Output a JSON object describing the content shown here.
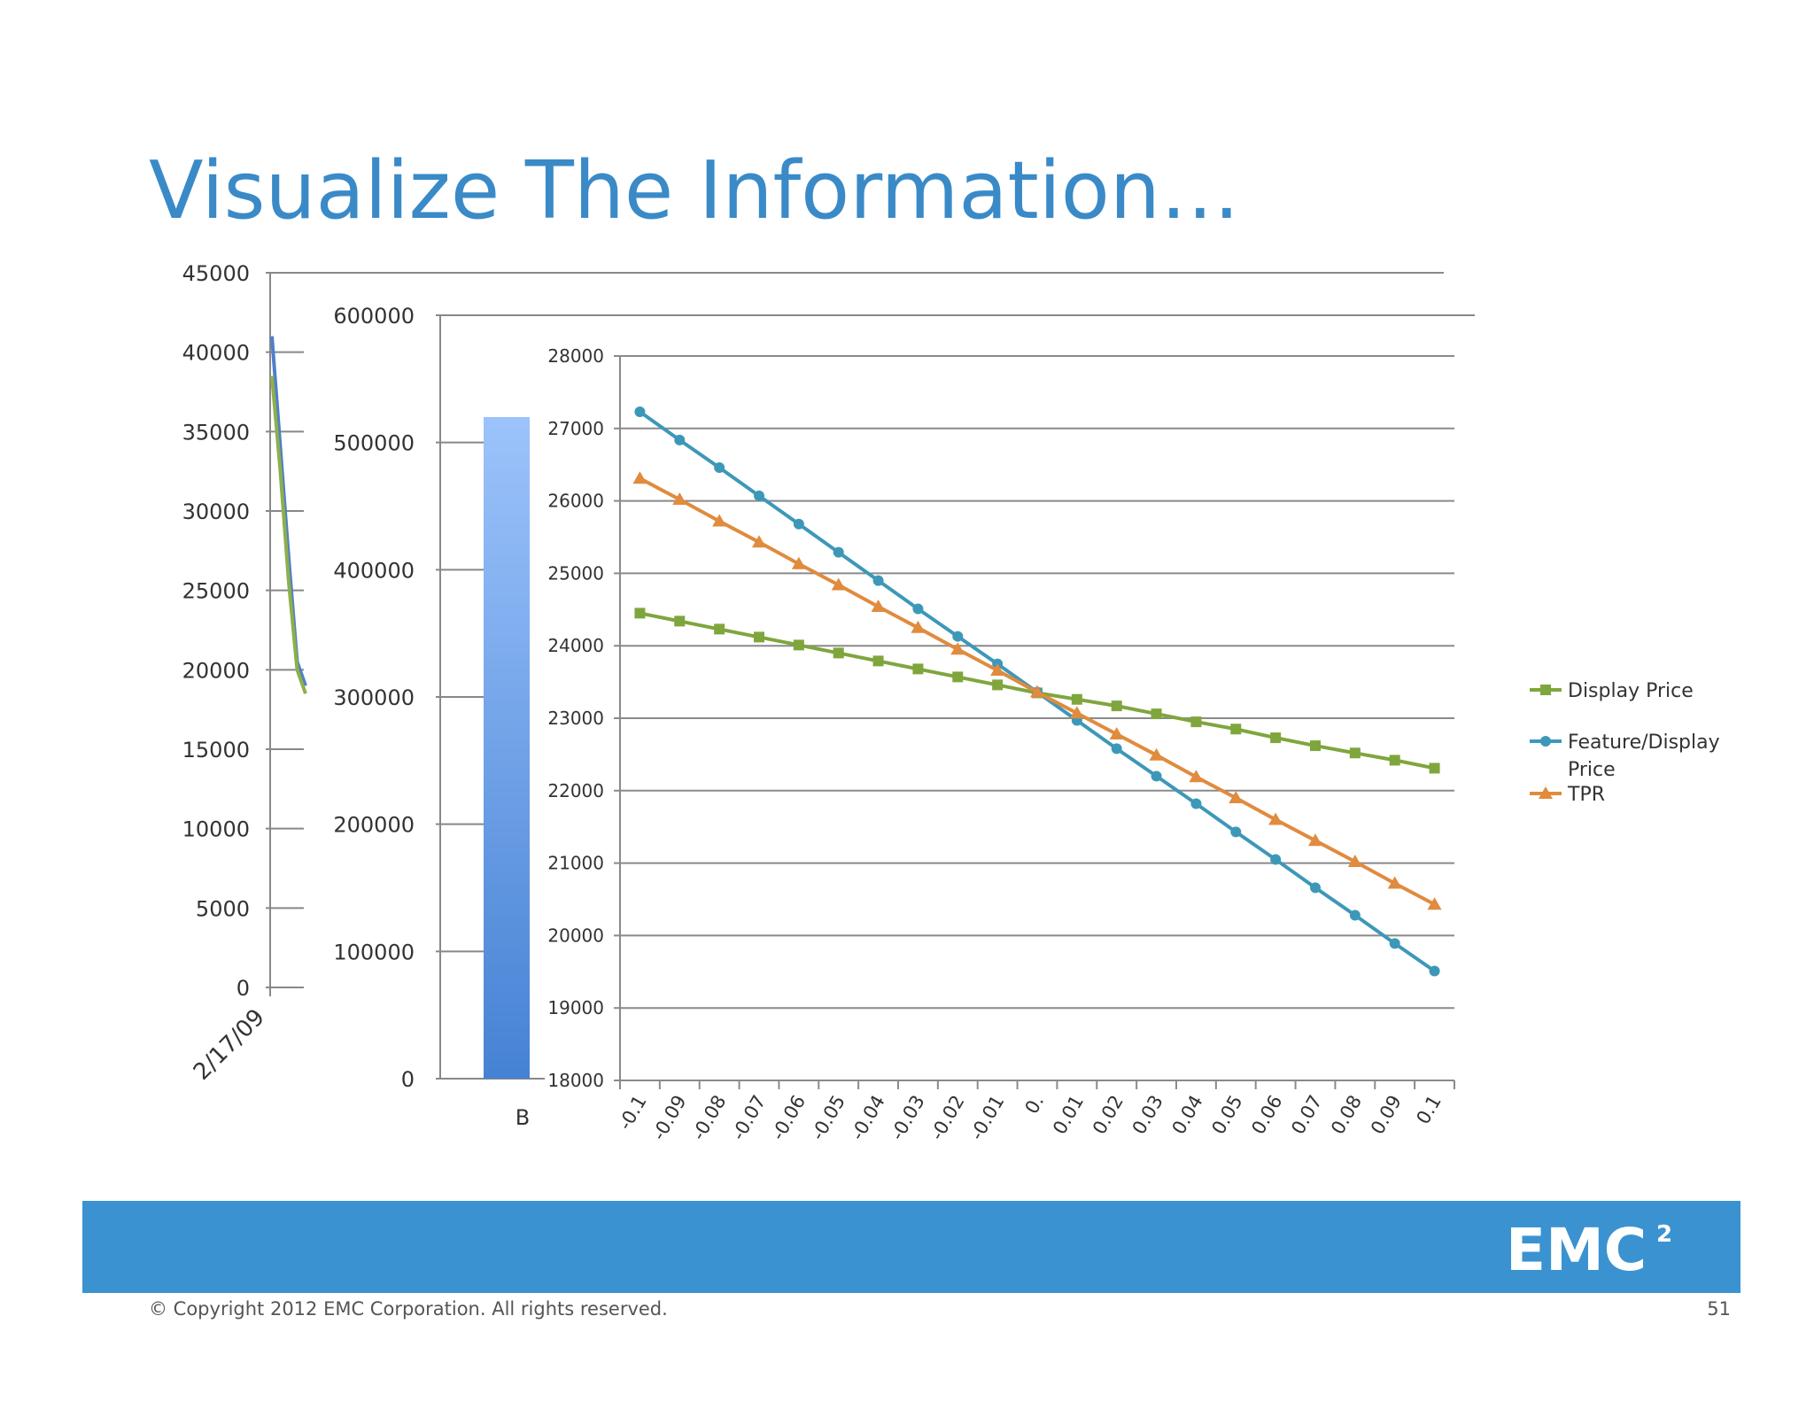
{
  "slide": {
    "title": "Visualize The Information…",
    "copyright": "© Copyright 2012 EMC Corporation. All rights reserved.",
    "page_number": "51",
    "logo_text": "EMC",
    "logo_sup": "2",
    "colors": {
      "title": "#3a8ac7",
      "footer_band": "#3a93d0"
    }
  },
  "chart_data": [
    {
      "type": "line",
      "role": "background-time-series",
      "ylim": [
        0,
        45000
      ],
      "yticks": [
        0,
        5000,
        10000,
        15000,
        20000,
        25000,
        30000,
        35000,
        40000,
        45000
      ],
      "x_tick_label": "2/17/09",
      "series": [
        {
          "color": "#4f7fc9",
          "y": [
            41000,
            34000,
            27000,
            20500,
            19000
          ]
        },
        {
          "color": "#8db04a",
          "y": [
            38500,
            32500,
            25500,
            20000,
            18500
          ]
        }
      ]
    },
    {
      "type": "bar",
      "role": "middle-bar-chart",
      "ylim": [
        0,
        600000
      ],
      "yticks": [
        0,
        100000,
        200000,
        300000,
        400000,
        500000,
        600000
      ],
      "categories": [
        "B"
      ],
      "values": [
        520000
      ]
    },
    {
      "type": "line",
      "role": "front-elasticity-chart",
      "ylim": [
        18000,
        28000
      ],
      "yticks": [
        18000,
        19000,
        20000,
        21000,
        22000,
        23000,
        24000,
        25000,
        26000,
        27000,
        28000
      ],
      "categories": [
        "-0.1",
        "-0.09",
        "-0.08",
        "-0.07",
        "-0.06",
        "-0.05",
        "-0.04",
        "-0.03",
        "-0.02",
        "-0.01",
        "0.",
        "0.01",
        "0.02",
        "0.03",
        "0.04",
        "0.05",
        "0.06",
        "0.07",
        "0.08",
        "0.09",
        "0.1"
      ],
      "grid": true,
      "legend_position": "right",
      "series": [
        {
          "name": "Display Price",
          "color": "#7fa63d",
          "marker": "square",
          "values": [
            24450,
            24340,
            24230,
            24120,
            24010,
            23900,
            23790,
            23680,
            23570,
            23460,
            23350,
            23260,
            23170,
            23060,
            22950,
            22850,
            22730,
            22620,
            22520,
            22420,
            22310
          ]
        },
        {
          "name": "Feature/Display Price",
          "name_lines": [
            "Feature/Display",
            "Price"
          ],
          "color": "#3d98b8",
          "marker": "circle",
          "values": [
            27230,
            26840,
            26460,
            26070,
            25680,
            25290,
            24900,
            24510,
            24130,
            23750,
            23360,
            22970,
            22580,
            22200,
            21820,
            21430,
            21050,
            20660,
            20280,
            19890,
            19510
          ]
        },
        {
          "name": "TPR",
          "color": "#e08b3e",
          "marker": "triangle",
          "values": [
            26310,
            26020,
            25720,
            25430,
            25130,
            24840,
            24540,
            24250,
            23950,
            23660,
            23360,
            23070,
            22780,
            22490,
            22190,
            21900,
            21600,
            21310,
            21020,
            20720,
            20430
          ]
        }
      ]
    }
  ]
}
